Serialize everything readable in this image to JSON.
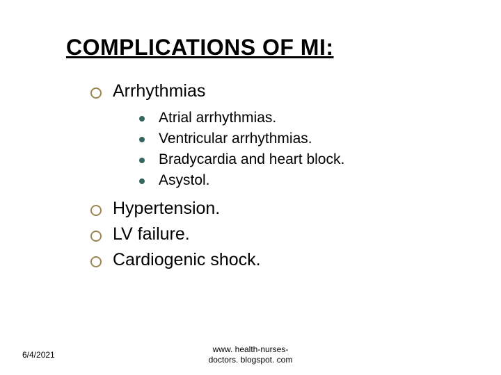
{
  "title": "COMPLICATIONS OF MI:",
  "list": {
    "items": [
      {
        "text": "Arrhythmias",
        "children": [
          "Atrial arrhythmias.",
          "Ventricular arrhythmias.",
          "Bradycardia and heart block.",
          "Asystol."
        ]
      },
      {
        "text": "Hypertension."
      },
      {
        "text": "LV failure."
      },
      {
        "text": "Cardiogenic shock."
      }
    ]
  },
  "footer": {
    "date": "6/4/2021",
    "url_line1": "www. health-nurses-",
    "url_line2": "doctors. blogspot. com"
  },
  "styling": {
    "slide_width": 720,
    "slide_height": 540,
    "background_color": "#ffffff",
    "title_fontsize": 32,
    "title_color": "#000000",
    "title_underline": true,
    "level1_fontsize": 25,
    "level1_bullet_type": "hollow-circle",
    "level1_bullet_color": "#9b8550",
    "level2_fontsize": 21,
    "level2_bullet_type": "solid-circle",
    "level2_bullet_color": "#33675f",
    "footer_fontsize": 12,
    "font_family_title": "Arial",
    "font_family_body": "Verdana"
  }
}
